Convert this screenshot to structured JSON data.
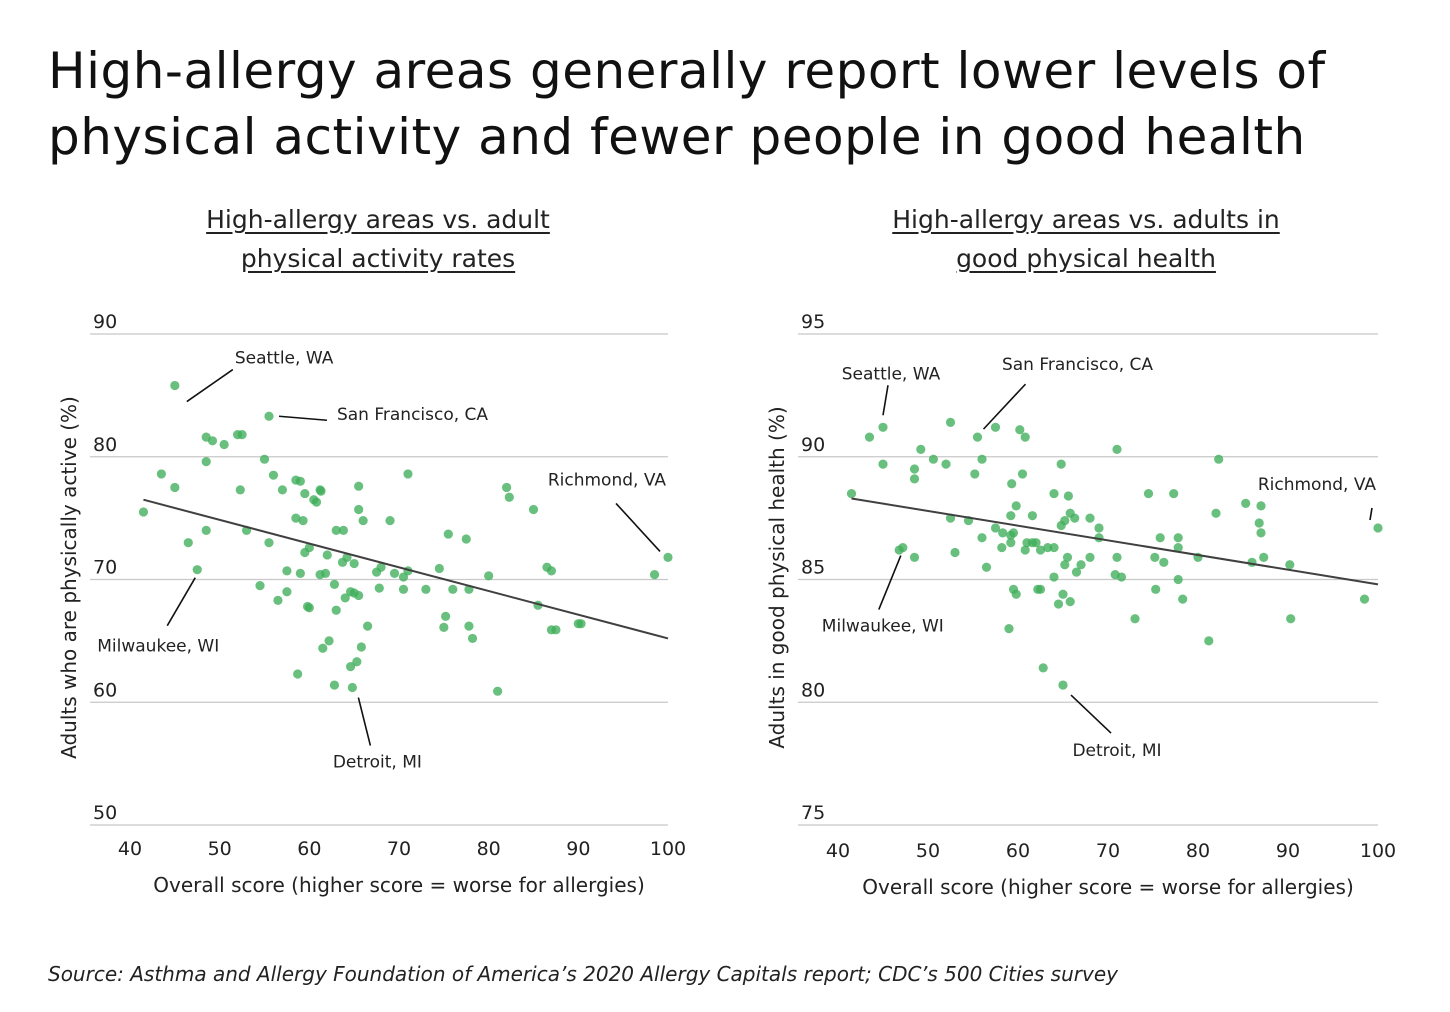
{
  "headline": "High-allergy areas generally report lower levels of physical activity and fewer people in good health",
  "source": "Source: Asthma and Allergy Foundation of America’s 2020 Allergy Capitals report; CDC’s 500 Cities survey",
  "colors": {
    "point": "#3fae5a",
    "trend": "#404040",
    "grid": "#c8c8c8",
    "text": "#222222"
  },
  "chart_data": [
    {
      "type": "scatter",
      "title_line1": "High-allergy areas vs. adult",
      "title_line2": "physical activity rates",
      "xlabel": "Overall score (higher score = worse for allergies)",
      "ylabel": "Adults who are physically active (%)",
      "xlim": [
        40,
        100
      ],
      "ylim": [
        50,
        90
      ],
      "xticks": [
        40,
        50,
        60,
        70,
        80,
        90,
        100
      ],
      "yticks": [
        50,
        60,
        70,
        80,
        90
      ],
      "grid": "horizontal",
      "trendline": [
        [
          41.5,
          76.5
        ],
        [
          100,
          65.2
        ]
      ],
      "annotations": [
        {
          "label": "Seattle, WA",
          "x": 45,
          "y": 85.8
        },
        {
          "label": "San Francisco, CA",
          "x": 55.5,
          "y": 83.3
        },
        {
          "label": "Richmond, VA",
          "x": 100,
          "y": 71.8
        },
        {
          "label": "Milwaukee, WI",
          "x": 47.5,
          "y": 70.8
        },
        {
          "label": "Detroit, MI",
          "x": 64.8,
          "y": 61.2
        }
      ],
      "points": [
        [
          45,
          85.8
        ],
        [
          55.5,
          83.3
        ],
        [
          48.5,
          81.6
        ],
        [
          49.2,
          81.3
        ],
        [
          50.5,
          81
        ],
        [
          52,
          81.8
        ],
        [
          52.5,
          81.8
        ],
        [
          43.5,
          78.6
        ],
        [
          45,
          77.5
        ],
        [
          48.5,
          79.6
        ],
        [
          52.3,
          77.3
        ],
        [
          55,
          79.8
        ],
        [
          56,
          78.5
        ],
        [
          57,
          77.3
        ],
        [
          58.5,
          78.1
        ],
        [
          59,
          78
        ],
        [
          59.5,
          77
        ],
        [
          60.5,
          76.5
        ],
        [
          61.2,
          77.3
        ],
        [
          61.3,
          77.2
        ],
        [
          60.8,
          76.3
        ],
        [
          41.5,
          75.5
        ],
        [
          48.5,
          74
        ],
        [
          53,
          74
        ],
        [
          58.5,
          75
        ],
        [
          59.3,
          74.8
        ],
        [
          63,
          74
        ],
        [
          63.8,
          74
        ],
        [
          65.5,
          75.7
        ],
        [
          66,
          74.8
        ],
        [
          65.5,
          77.6
        ],
        [
          69,
          74.8
        ],
        [
          71,
          78.6
        ],
        [
          82,
          77.5
        ],
        [
          82.3,
          76.7
        ],
        [
          85,
          75.7
        ],
        [
          75.5,
          73.7
        ],
        [
          77.5,
          73.3
        ],
        [
          46.5,
          73
        ],
        [
          55.5,
          73
        ],
        [
          59.5,
          72.2
        ],
        [
          60,
          72.6
        ],
        [
          62,
          72
        ],
        [
          63.7,
          71.4
        ],
        [
          64.2,
          71.8
        ],
        [
          65,
          71.3
        ],
        [
          67.5,
          70.6
        ],
        [
          68,
          71
        ],
        [
          69.5,
          70.5
        ],
        [
          70.5,
          70.2
        ],
        [
          71,
          70.7
        ],
        [
          74.5,
          70.9
        ],
        [
          57.5,
          70.7
        ],
        [
          59,
          70.5
        ],
        [
          61.2,
          70.4
        ],
        [
          61.8,
          70.5
        ],
        [
          47.5,
          70.8
        ],
        [
          54.5,
          69.5
        ],
        [
          57.5,
          69
        ],
        [
          60,
          67.7
        ],
        [
          59.8,
          67.8
        ],
        [
          62.8,
          69.6
        ],
        [
          64,
          68.5
        ],
        [
          64.6,
          69
        ],
        [
          65,
          68.9
        ],
        [
          65.5,
          68.7
        ],
        [
          67.8,
          69.3
        ],
        [
          70.5,
          69.2
        ],
        [
          73,
          69.2
        ],
        [
          76,
          69.2
        ],
        [
          77.8,
          69.2
        ],
        [
          80,
          70.3
        ],
        [
          56.5,
          68.3
        ],
        [
          63,
          67.5
        ],
        [
          75.2,
          67
        ],
        [
          75,
          66.1
        ],
        [
          77.8,
          66.2
        ],
        [
          78.2,
          65.2
        ],
        [
          66.5,
          66.2
        ],
        [
          85.5,
          67.9
        ],
        [
          87,
          65.9
        ],
        [
          87.5,
          65.9
        ],
        [
          86.5,
          71
        ],
        [
          87,
          70.7
        ],
        [
          90,
          66.4
        ],
        [
          90.3,
          66.4
        ],
        [
          98.5,
          70.4
        ],
        [
          100,
          71.8
        ],
        [
          61.5,
          64.4
        ],
        [
          62.2,
          65
        ],
        [
          65.8,
          64.5
        ],
        [
          65.3,
          63.3
        ],
        [
          64.6,
          62.9
        ],
        [
          58.7,
          62.3
        ],
        [
          62.8,
          61.4
        ],
        [
          64.8,
          61.2
        ],
        [
          81,
          60.9
        ]
      ]
    },
    {
      "type": "scatter",
      "title_line1": "High-allergy areas vs. adults in",
      "title_line2": "good physical health",
      "xlabel": "Overall score (higher score = worse for allergies)",
      "ylabel": "Adults in good physical health (%)",
      "xlim": [
        40,
        100
      ],
      "ylim": [
        75,
        95
      ],
      "xticks": [
        40,
        50,
        60,
        70,
        80,
        90,
        100
      ],
      "yticks": [
        75,
        80,
        85,
        90,
        95
      ],
      "grid": "horizontal",
      "trendline": [
        [
          41.5,
          88.3
        ],
        [
          100,
          84.8
        ]
      ],
      "annotations": [
        {
          "label": "Seattle, WA",
          "x": 45,
          "y": 91.2
        },
        {
          "label": "San Francisco, CA",
          "x": 55.5,
          "y": 90.8
        },
        {
          "label": "Richmond, VA",
          "x": 100,
          "y": 87.1
        },
        {
          "label": "Milwaukee, WI",
          "x": 47.2,
          "y": 86.3
        },
        {
          "label": "Detroit, MI",
          "x": 65,
          "y": 80.7
        }
      ],
      "points": [
        [
          41.5,
          88.5
        ],
        [
          43.5,
          90.8
        ],
        [
          45,
          91.2
        ],
        [
          45,
          89.7
        ],
        [
          48.5,
          89.5
        ],
        [
          48.5,
          89.1
        ],
        [
          49.2,
          90.3
        ],
        [
          50.6,
          89.9
        ],
        [
          52,
          89.7
        ],
        [
          52.5,
          91.4
        ],
        [
          55.5,
          90.8
        ],
        [
          56,
          89.9
        ],
        [
          57.5,
          91.2
        ],
        [
          60.2,
          91.1
        ],
        [
          60.8,
          90.8
        ],
        [
          55.2,
          89.3
        ],
        [
          59.3,
          88.9
        ],
        [
          60.5,
          89.3
        ],
        [
          64.8,
          89.7
        ],
        [
          71,
          90.3
        ],
        [
          82.3,
          89.9
        ],
        [
          64,
          88.5
        ],
        [
          65.6,
          88.4
        ],
        [
          59.8,
          88
        ],
        [
          59.2,
          87.6
        ],
        [
          61.6,
          87.6
        ],
        [
          65.8,
          87.7
        ],
        [
          66.3,
          87.5
        ],
        [
          68,
          87.5
        ],
        [
          64.8,
          87.2
        ],
        [
          65.2,
          87.4
        ],
        [
          69,
          87.1
        ],
        [
          52.5,
          87.5
        ],
        [
          54.5,
          87.4
        ],
        [
          57.5,
          87.1
        ],
        [
          56,
          86.7
        ],
        [
          58.3,
          86.9
        ],
        [
          59.2,
          86.8
        ],
        [
          59.5,
          86.9
        ],
        [
          59.2,
          86.5
        ],
        [
          58.2,
          86.3
        ],
        [
          61,
          86.5
        ],
        [
          61.6,
          86.5
        ],
        [
          62,
          86.5
        ],
        [
          60.8,
          86.2
        ],
        [
          63.3,
          86.3
        ],
        [
          64,
          86.3
        ],
        [
          69,
          86.7
        ],
        [
          74.5,
          88.5
        ],
        [
          77.3,
          88.5
        ],
        [
          82,
          87.7
        ],
        [
          85.3,
          88.1
        ],
        [
          87,
          88
        ],
        [
          86.8,
          87.3
        ],
        [
          87,
          86.9
        ],
        [
          75.8,
          86.7
        ],
        [
          77.8,
          86.7
        ],
        [
          77.8,
          86.3
        ],
        [
          47.2,
          86.3
        ],
        [
          46.8,
          86.2
        ],
        [
          48.5,
          85.9
        ],
        [
          53,
          86.1
        ],
        [
          56.5,
          85.5
        ],
        [
          62.5,
          86.2
        ],
        [
          65.5,
          85.9
        ],
        [
          66.5,
          85.3
        ],
        [
          67,
          85.6
        ],
        [
          68,
          85.9
        ],
        [
          65.2,
          85.6
        ],
        [
          71,
          85.9
        ],
        [
          70.8,
          85.2
        ],
        [
          71.5,
          85.1
        ],
        [
          75.2,
          85.9
        ],
        [
          76.2,
          85.7
        ],
        [
          80,
          85.9
        ],
        [
          86,
          85.7
        ],
        [
          87.3,
          85.9
        ],
        [
          90.2,
          85.6
        ],
        [
          64,
          85.1
        ],
        [
          65,
          84.4
        ],
        [
          65.8,
          84.1
        ],
        [
          64.5,
          84
        ],
        [
          62.5,
          84.6
        ],
        [
          62.2,
          84.6
        ],
        [
          59.5,
          84.6
        ],
        [
          59.8,
          84.4
        ],
        [
          75.3,
          84.6
        ],
        [
          77.8,
          85
        ],
        [
          78.3,
          84.2
        ],
        [
          98.5,
          84.2
        ],
        [
          100,
          87.1
        ],
        [
          73,
          83.4
        ],
        [
          90.3,
          83.4
        ],
        [
          59,
          83
        ],
        [
          81.2,
          82.5
        ],
        [
          62.8,
          81.4
        ],
        [
          65,
          80.7
        ]
      ]
    }
  ]
}
